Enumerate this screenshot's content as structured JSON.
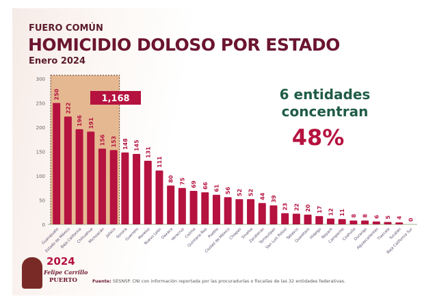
{
  "header": {
    "kicker": "FUERO COMÚN",
    "title": "HOMICIDIO DOLOSO POR ESTADO",
    "subtitle": "Enero 2024"
  },
  "callout": {
    "line1": "6 entidades",
    "line2": "concentran",
    "percent": "48%"
  },
  "highlight": {
    "total": "1,168",
    "count": 6,
    "fill": "#e0ad80"
  },
  "logo": {
    "year": "2024",
    "name": "Felipe Carrillo",
    "surname": "PUERTO"
  },
  "footer": {
    "label": "Fuente:",
    "text": "SESNSP. CNI con información reportada por las procuradurías o fiscalías de las 32 entidades federativas."
  },
  "colors": {
    "bar": "#b5123f",
    "title": "#6b1530",
    "accent_green": "#1f5c45"
  },
  "chart_data": {
    "type": "bar",
    "ylim": [
      0,
      300
    ],
    "yticks": [
      0,
      50,
      100,
      150,
      200,
      250,
      300
    ],
    "grid": false,
    "categories": [
      "Guanajuato",
      "Estado de México",
      "Baja California",
      "Chihuahua",
      "Michoacán",
      "Jalisco",
      "Sonora",
      "Guerrero",
      "Morelos",
      "Nuevo León",
      "Oaxaca",
      "Veracruz",
      "Colima",
      "Quintana Roo",
      "Puebla",
      "Ciudad de México",
      "Chiapas",
      "Sinaloa",
      "Zacatecas",
      "Tamaulipas",
      "San Luis Potosí",
      "Tabasco",
      "Querétaro",
      "Hidalgo",
      "Nayarit",
      "Campeche",
      "Coahuila",
      "Durango",
      "Aguascalientes",
      "Tlaxcala",
      "Yucatán",
      "Baja California Sur"
    ],
    "values": [
      250,
      222,
      196,
      191,
      156,
      153,
      148,
      145,
      131,
      111,
      80,
      75,
      69,
      66,
      61,
      56,
      52,
      52,
      44,
      39,
      23,
      22,
      20,
      17,
      12,
      11,
      8,
      8,
      6,
      5,
      4,
      0
    ]
  }
}
